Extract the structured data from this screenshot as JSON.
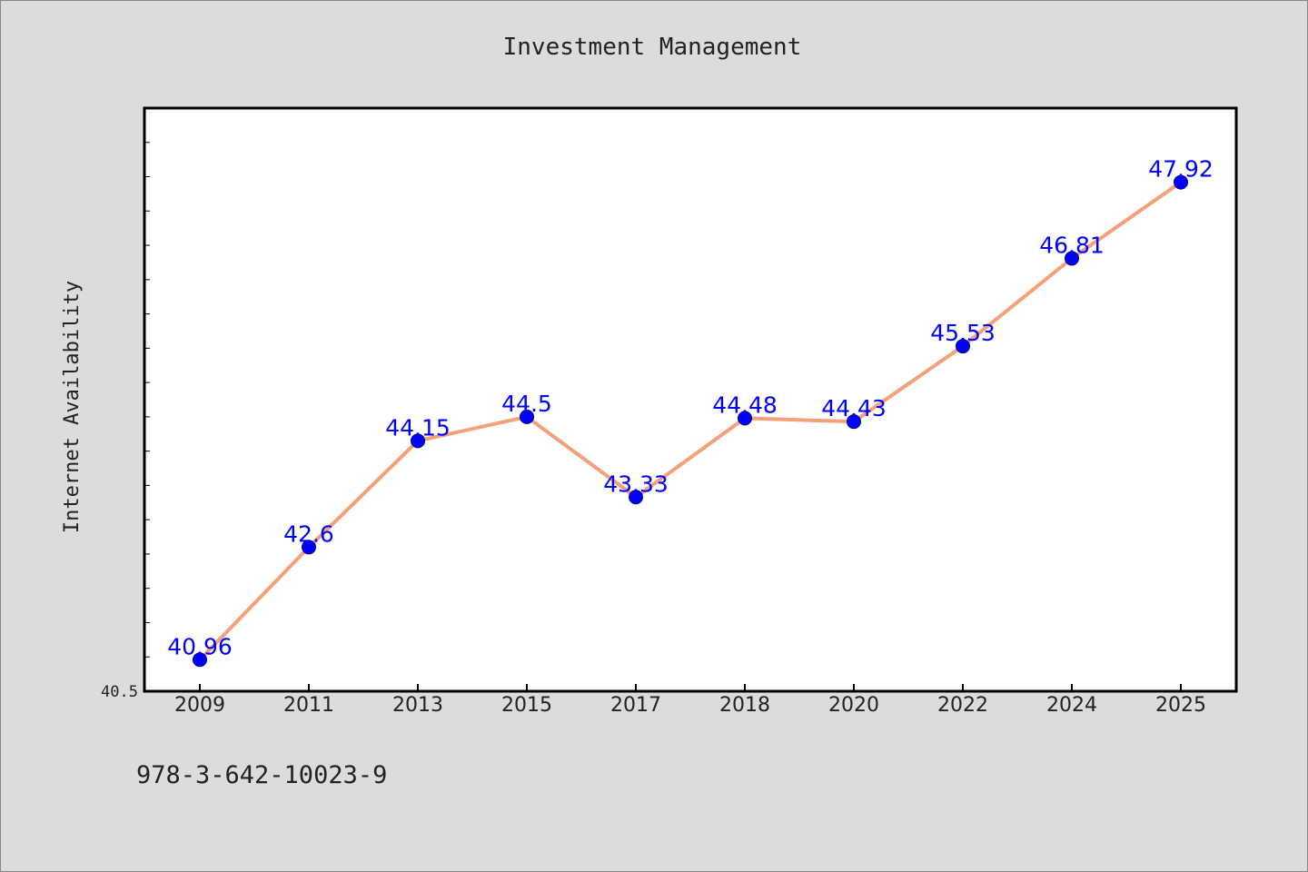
{
  "chart_data": {
    "type": "line",
    "title": "Investment Management",
    "xlabel": "",
    "ylabel": "Internet Availability",
    "categories": [
      "2009",
      "2011",
      "2013",
      "2015",
      "2017",
      "2018",
      "2020",
      "2022",
      "2024",
      "2025"
    ],
    "series": [
      {
        "values": [
          40.96,
          42.6,
          44.15,
          44.5,
          43.33,
          44.48,
          44.43,
          45.53,
          46.81,
          47.92
        ],
        "labels": [
          "40.96",
          "42.6",
          "44.15",
          "44.5",
          "43.33",
          "44.48",
          "44.43",
          "45.53",
          "46.81",
          "47.92"
        ]
      }
    ],
    "y_tick_labels": [
      "40.5"
    ],
    "ylim": [
      40.5,
      49.0
    ],
    "grid": false,
    "legend": "none"
  },
  "footer_text": "978-3-642-10023-9",
  "colors": {
    "background": "#dcdcdc",
    "plot_background": "#ffffff",
    "line": "#f4a07a",
    "marker": "#0000ff",
    "data_label": "#0000ff"
  }
}
